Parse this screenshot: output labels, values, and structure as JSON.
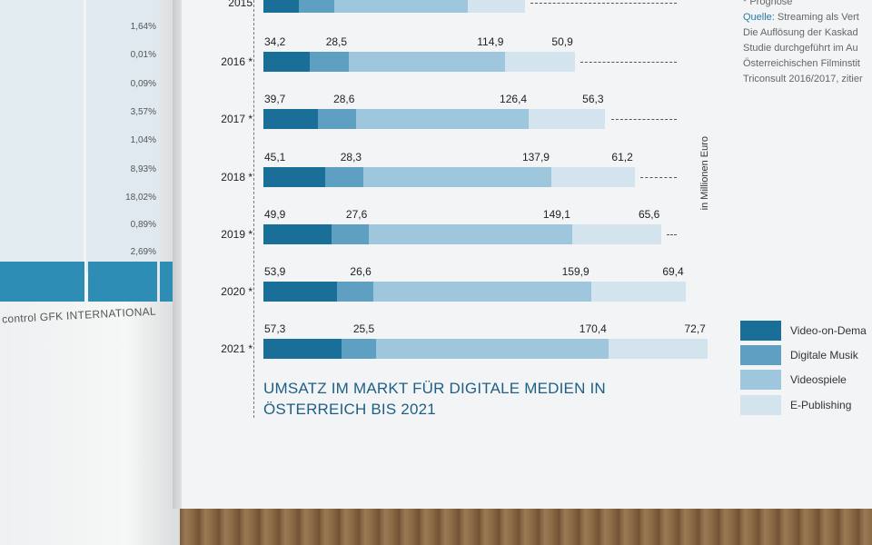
{
  "left_page": {
    "values": [
      "1,64%",
      "0,01%",
      "0,09%",
      "3,57%",
      "1,04%",
      "8,93%",
      "18,02%",
      "0,89%",
      "2,69%"
    ],
    "footer": "control GFK INTERNATIONAL"
  },
  "notes": {
    "prognose": "* Prognose",
    "source_label": "Quelle:",
    "source_line1": "Streaming als Vert",
    "line2": "Die Auflösung der Kaskad",
    "line3": "Studie durchgeführt im Au",
    "line4": "Österreichischen Filminstit",
    "line5": "Triconsult 2016/2017, zitier"
  },
  "colors": {
    "video_on_demand": "#1a6f99",
    "digitale_musik": "#5f9fc2",
    "videospiele": "#9ec6dc",
    "e_publishing": "#d4e4ee"
  },
  "chart_data": {
    "type": "bar",
    "orientation": "horizontal",
    "stacked": true,
    "title": "UMSATZ IM MARKT FÜR DIGITALE MEDIEN IN ÖSTERREICH BIS 2021",
    "unit_label": "in Millionen Euro",
    "categories": [
      "2015",
      "2016 *",
      "2017 *",
      "2018 *",
      "2019 *",
      "2020 *",
      "2021 *"
    ],
    "series": [
      {
        "name": "Video-on-Dema",
        "values": [
          null,
          34.2,
          39.7,
          45.1,
          49.9,
          53.9,
          57.3
        ],
        "labels": [
          "",
          "34,2",
          "39,7",
          "45,1",
          "49,9",
          "53,9",
          "57,3"
        ]
      },
      {
        "name": "Digitale Musik",
        "values": [
          null,
          28.5,
          28.6,
          28.3,
          27.6,
          26.6,
          25.5
        ],
        "labels": [
          "",
          "28,5",
          "28,6",
          "28,3",
          "27,6",
          "26,6",
          "25,5"
        ]
      },
      {
        "name": "Videospiele",
        "values": [
          null,
          114.9,
          126.4,
          137.9,
          149.1,
          159.9,
          170.4
        ],
        "labels": [
          "",
          "114,9",
          "126,4",
          "137,9",
          "149,1",
          "159,9",
          "170,4"
        ]
      },
      {
        "name": "E-Publishing",
        "values": [
          null,
          50.9,
          56.3,
          61.2,
          65.6,
          69.4,
          72.7
        ],
        "labels": [
          "",
          "50,9",
          "56,3",
          "61,2",
          "65,6",
          "69,4",
          "72,7"
        ]
      }
    ],
    "legend_position": "right"
  }
}
